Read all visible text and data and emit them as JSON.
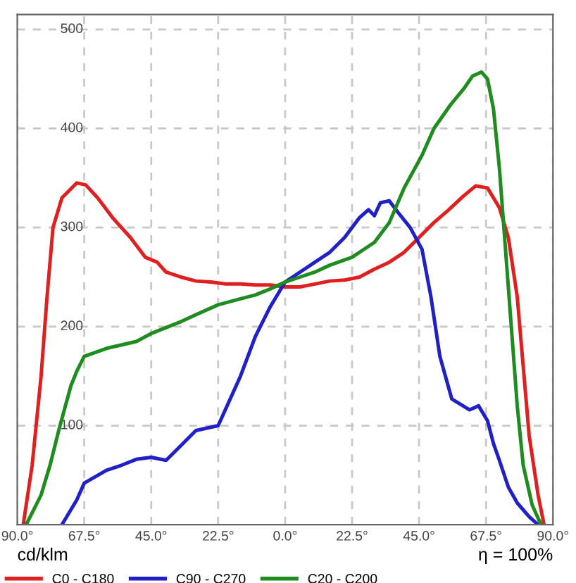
{
  "chart_data": {
    "type": "line",
    "annotations": [
      "cd/klm",
      "η = 100%"
    ],
    "xlim": [
      -90,
      90
    ],
    "ylim": [
      0,
      515
    ],
    "xticks": [
      {
        "value": -90,
        "label": "90.0°"
      },
      {
        "value": -67.5,
        "label": "67.5°"
      },
      {
        "value": -45,
        "label": "45.0°"
      },
      {
        "value": -22.5,
        "label": "22.5°"
      },
      {
        "value": 0,
        "label": "0.0°"
      },
      {
        "value": 22.5,
        "label": "22.5°"
      },
      {
        "value": 45,
        "label": "45.0°"
      },
      {
        "value": 67.5,
        "label": "67.5°"
      },
      {
        "value": 90,
        "label": "90.0°"
      }
    ],
    "yticks": [
      100,
      200,
      300,
      400,
      500
    ],
    "grid": true,
    "legend": "bottom",
    "line_style": "solid",
    "series": [
      {
        "name": "C0 - C180",
        "color": "#e02020",
        "x": [
          -88,
          -85,
          -82,
          -80,
          -78,
          -75,
          -70,
          -67,
          -63,
          -58,
          -52,
          -47,
          -43,
          -40,
          -35,
          -30,
          -25,
          -20,
          -15,
          -10,
          -5,
          0,
          5,
          10,
          15,
          20,
          25,
          30,
          35,
          40,
          45,
          50,
          55,
          60,
          64,
          68,
          72,
          75,
          78,
          80,
          82,
          85,
          87
        ],
        "values": [
          0,
          60,
          150,
          230,
          300,
          330,
          345,
          343,
          330,
          310,
          290,
          270,
          265,
          255,
          250,
          246,
          245,
          243,
          243,
          242,
          242,
          240,
          240,
          243,
          246,
          247,
          250,
          258,
          265,
          275,
          290,
          305,
          318,
          332,
          342,
          340,
          320,
          290,
          230,
          160,
          90,
          30,
          0
        ]
      },
      {
        "name": "C90 - C270",
        "color": "#2020c8",
        "x": [
          -75,
          -70,
          -67.5,
          -60,
          -55,
          -50,
          -45,
          -40,
          -35,
          -30,
          -22.5,
          -15,
          -10,
          -5,
          0,
          5,
          10,
          15,
          20,
          25,
          28,
          30,
          32,
          35,
          38,
          42,
          46,
          49,
          52,
          56,
          62,
          65,
          68,
          70,
          72,
          75,
          78,
          82,
          85
        ],
        "values": [
          0,
          25,
          42,
          55,
          60,
          66,
          68,
          65,
          80,
          95,
          100,
          150,
          190,
          220,
          245,
          255,
          265,
          275,
          290,
          310,
          318,
          312,
          325,
          327,
          315,
          300,
          278,
          230,
          170,
          127,
          116,
          120,
          105,
          82,
          65,
          38,
          22,
          8,
          0
        ]
      },
      {
        "name": "C20 - C200",
        "color": "#1e8c1e",
        "x": [
          -87,
          -82,
          -79,
          -76,
          -72,
          -70,
          -67.5,
          -60,
          -50,
          -45,
          -35,
          -30,
          -22.5,
          -15,
          -10,
          -5,
          0,
          5,
          10,
          15,
          22.5,
          30,
          35,
          40,
          46,
          50,
          55.6,
          60,
          63,
          66,
          68,
          70,
          72,
          74,
          76,
          78,
          80,
          83,
          86
        ],
        "values": [
          0,
          30,
          60,
          96,
          140,
          155,
          170,
          178,
          185,
          193,
          205,
          212,
          222,
          228,
          232,
          238,
          245,
          250,
          255,
          262,
          270,
          285,
          305,
          340,
          373,
          400,
          424,
          440,
          453,
          457,
          450,
          420,
          360,
          280,
          200,
          120,
          60,
          20,
          0
        ]
      }
    ]
  }
}
